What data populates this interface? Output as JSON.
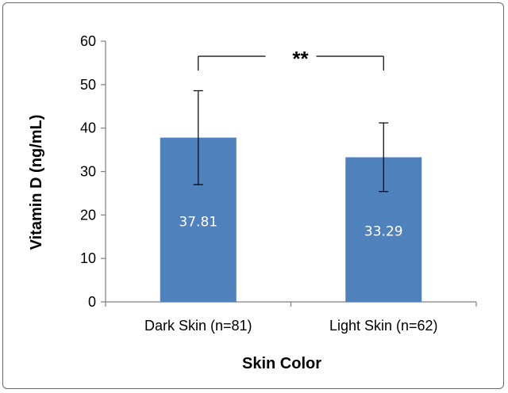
{
  "chart_data": {
    "type": "bar",
    "categories": [
      "Dark Skin (n=81)",
      "Light Skin (n=62)"
    ],
    "values": [
      37.81,
      33.29
    ],
    "data_labels": [
      "37.81",
      "33.29"
    ],
    "error_bars": [
      {
        "low": 27.0,
        "high": 48.6
      },
      {
        "low": 25.4,
        "high": 41.2
      }
    ],
    "xlabel": "Skin Color",
    "ylabel": "Vitamin D (ng/mL)",
    "ylim": [
      0,
      60
    ],
    "yticks": [
      "0",
      "10",
      "20",
      "30",
      "40",
      "50",
      "60"
    ],
    "grid": false,
    "bar_color": "#4f81bd",
    "significance": {
      "label": "**",
      "between": [
        0,
        1
      ]
    }
  }
}
